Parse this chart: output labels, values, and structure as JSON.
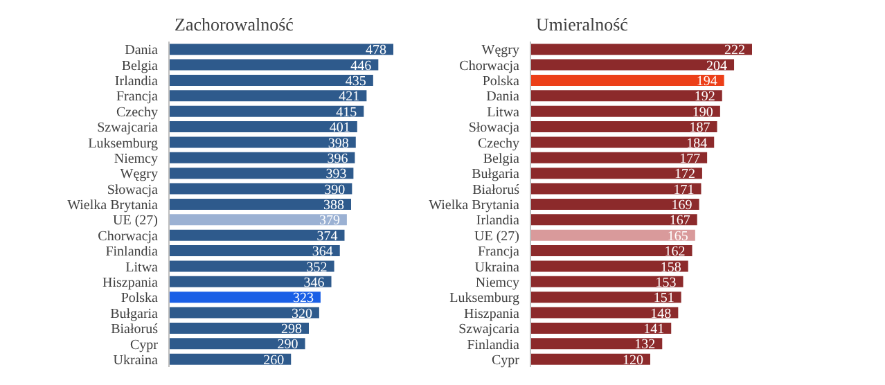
{
  "chart_data": [
    {
      "type": "bar",
      "orientation": "horizontal",
      "title": "Zachorowalność",
      "data_labels": true,
      "categories": [
        "Dania",
        "Belgia",
        "Irlandia",
        "Francja",
        "Czechy",
        "Szwajcaria",
        "Luksemburg",
        "Niemcy",
        "Węgry",
        "Słowacja",
        "Wielka Brytania",
        "UE (27)",
        "Chorwacja",
        "Finlandia",
        "Litwa",
        "Hiszpania",
        "Polska",
        "Bułgaria",
        "Białoruś",
        "Cypr",
        "Ukraina"
      ],
      "values": [
        478,
        446,
        435,
        421,
        415,
        401,
        398,
        396,
        393,
        390,
        388,
        379,
        374,
        364,
        352,
        346,
        323,
        320,
        298,
        290,
        260
      ],
      "colors": [
        "#2e5a8c",
        "#2e5a8c",
        "#2e5a8c",
        "#2e5a8c",
        "#2e5a8c",
        "#2e5a8c",
        "#2e5a8c",
        "#2e5a8c",
        "#2e5a8c",
        "#2e5a8c",
        "#2e5a8c",
        "#9bb1d3",
        "#2e5a8c",
        "#2e5a8c",
        "#2e5a8c",
        "#2e5a8c",
        "#1a5fe6",
        "#2e5a8c",
        "#2e5a8c",
        "#2e5a8c",
        "#2e5a8c"
      ]
    },
    {
      "type": "bar",
      "orientation": "horizontal",
      "title": "Umieralność",
      "data_labels": true,
      "categories": [
        "Węgry",
        "Chorwacja",
        "Polska",
        "Dania",
        "Litwa",
        "Słowacja",
        "Czechy",
        "Belgia",
        "Bułgaria",
        "Białoruś",
        "Wielka Brytania",
        "Irlandia",
        "UE (27)",
        "Francja",
        "Ukraina",
        "Niemcy",
        "Luksemburg",
        "Hiszpania",
        "Szwajcaria",
        "Finlandia",
        "Cypr"
      ],
      "values": [
        222,
        204,
        194,
        192,
        190,
        187,
        184,
        177,
        172,
        171,
        169,
        167,
        165,
        162,
        158,
        153,
        151,
        148,
        141,
        132,
        120
      ],
      "colors": [
        "#8c2a2b",
        "#8c2a2b",
        "#ec3f18",
        "#8c2a2b",
        "#8c2a2b",
        "#8c2a2b",
        "#8c2a2b",
        "#8c2a2b",
        "#8c2a2b",
        "#8c2a2b",
        "#8c2a2b",
        "#8c2a2b",
        "#d99a9b",
        "#8c2a2b",
        "#8c2a2b",
        "#8c2a2b",
        "#8c2a2b",
        "#8c2a2b",
        "#8c2a2b",
        "#8c2a2b",
        "#8c2a2b"
      ]
    }
  ]
}
